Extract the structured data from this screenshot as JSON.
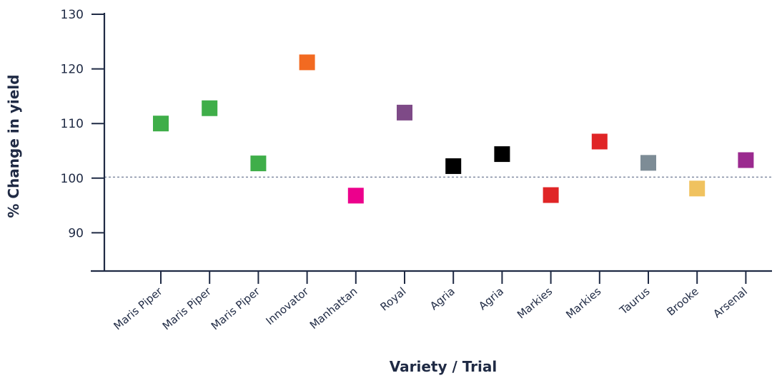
{
  "chart_data": {
    "type": "scatter",
    "title": "",
    "xlabel": "Variety / Trial",
    "ylabel": "% Change in yield",
    "ylim": [
      83,
      130
    ],
    "yticks": [
      90,
      100,
      110,
      120,
      130
    ],
    "reference_line": 100.2,
    "grid": false,
    "categories": [
      "Maris Piper",
      "Maris Piper",
      "Maris Piper",
      "Innovator",
      "Manhattan",
      "Royal",
      "Agria",
      "Agria",
      "Markies",
      "Markies",
      "Taurus",
      "Brooke",
      "Arsenal"
    ],
    "values": [
      110.0,
      112.8,
      102.7,
      121.2,
      96.8,
      112.0,
      102.2,
      104.4,
      96.9,
      106.7,
      102.8,
      98.1,
      103.3
    ],
    "colors": [
      "#3fae49",
      "#3fae49",
      "#3fae49",
      "#f26a21",
      "#ec008c",
      "#7e4a87",
      "#000000",
      "#000000",
      "#e02526",
      "#e02526",
      "#7d8c96",
      "#f0c25f",
      "#9b2a8f"
    ]
  }
}
